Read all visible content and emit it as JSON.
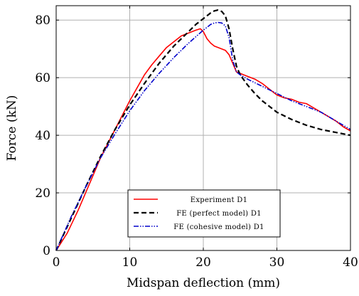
{
  "chart_data": {
    "type": "line",
    "title": "",
    "xlabel": "Midspan deflection (mm)",
    "ylabel": "Force (kN)",
    "xlim": [
      0,
      40
    ],
    "ylim": [
      0,
      85
    ],
    "xticks": [
      0,
      10,
      20,
      30,
      40
    ],
    "yticks": [
      0,
      20,
      40,
      60,
      80
    ],
    "grid": true,
    "legend_position": "bottom-center",
    "series": [
      {
        "name": "Experiment D1",
        "color": "#ff0000",
        "style": "solid",
        "points": [
          [
            0,
            0
          ],
          [
            0.5,
            2
          ],
          [
            1.5,
            6
          ],
          [
            3,
            14
          ],
          [
            4,
            20
          ],
          [
            5,
            26
          ],
          [
            6,
            32
          ],
          [
            7,
            37
          ],
          [
            8,
            42
          ],
          [
            9,
            47
          ],
          [
            10,
            52
          ],
          [
            11,
            56.5
          ],
          [
            12,
            61
          ],
          [
            13,
            64.5
          ],
          [
            14,
            67.5
          ],
          [
            15,
            70.5
          ],
          [
            16,
            72.5
          ],
          [
            17,
            74.5
          ],
          [
            18,
            75.5
          ],
          [
            19,
            76.5
          ],
          [
            19.6,
            77
          ],
          [
            20,
            76
          ],
          [
            20.5,
            73.5
          ],
          [
            21,
            72
          ],
          [
            21.5,
            71
          ],
          [
            22,
            70.5
          ],
          [
            23,
            69.5
          ],
          [
            23.5,
            68
          ],
          [
            24,
            65
          ],
          [
            24.5,
            62
          ],
          [
            25,
            61.5
          ],
          [
            26,
            60.5
          ],
          [
            27,
            59.5
          ],
          [
            28,
            58
          ],
          [
            29,
            56
          ],
          [
            30,
            54
          ],
          [
            31,
            53
          ],
          [
            32,
            52.5
          ],
          [
            33,
            51.5
          ],
          [
            34,
            51
          ],
          [
            35,
            49.5
          ],
          [
            36,
            48
          ],
          [
            37,
            46.5
          ],
          [
            38,
            45
          ],
          [
            39,
            43
          ],
          [
            40,
            41.5
          ]
        ]
      },
      {
        "name": "FE (perfect model) D1",
        "color": "#000000",
        "style": "dashed",
        "points": [
          [
            0,
            0
          ],
          [
            2,
            11
          ],
          [
            4,
            22
          ],
          [
            6,
            32.5
          ],
          [
            8,
            42
          ],
          [
            10,
            50.5
          ],
          [
            12,
            58
          ],
          [
            14,
            65
          ],
          [
            16,
            71
          ],
          [
            18,
            76
          ],
          [
            19,
            78.5
          ],
          [
            20,
            80.5
          ],
          [
            21,
            82.5
          ],
          [
            21.5,
            83.2
          ],
          [
            22,
            83.5
          ],
          [
            22.5,
            83
          ],
          [
            23,
            81.5
          ],
          [
            23.5,
            77
          ],
          [
            24,
            70
          ],
          [
            24.5,
            64
          ],
          [
            25,
            61
          ],
          [
            26,
            57.5
          ],
          [
            27,
            54.5
          ],
          [
            28,
            52
          ],
          [
            29,
            50
          ],
          [
            30,
            48
          ],
          [
            32,
            45.5
          ],
          [
            34,
            43.5
          ],
          [
            36,
            42
          ],
          [
            38,
            41
          ],
          [
            40,
            40
          ]
        ]
      },
      {
        "name": "FE (cohesive model) D1",
        "color": "#0000cc",
        "style": "dashdotdot",
        "points": [
          [
            0,
            0
          ],
          [
            2,
            11.5
          ],
          [
            4,
            22
          ],
          [
            6,
            32
          ],
          [
            8,
            40.5
          ],
          [
            10,
            48.5
          ],
          [
            12,
            55.5
          ],
          [
            14,
            61.5
          ],
          [
            16,
            67
          ],
          [
            18,
            72
          ],
          [
            20,
            76.5
          ],
          [
            21,
            78.5
          ],
          [
            21.5,
            79
          ],
          [
            22,
            79.2
          ],
          [
            22.5,
            79
          ],
          [
            23,
            78
          ],
          [
            23.5,
            74
          ],
          [
            24,
            66
          ],
          [
            24.5,
            62
          ],
          [
            25,
            61
          ],
          [
            26,
            59.5
          ],
          [
            28,
            57
          ],
          [
            30,
            54.5
          ],
          [
            32,
            52
          ],
          [
            34,
            50
          ],
          [
            36,
            48
          ],
          [
            38,
            45
          ],
          [
            40,
            42
          ]
        ]
      }
    ]
  }
}
